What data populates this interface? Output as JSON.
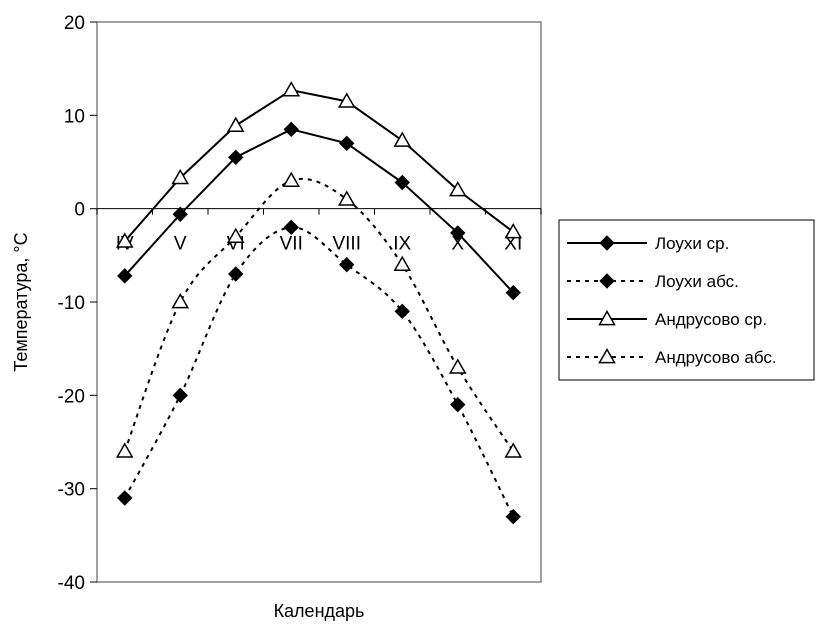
{
  "chart_data": {
    "type": "line",
    "title": "",
    "xlabel": "Календарь",
    "ylabel": "Температура, °C",
    "ylim": [
      -40,
      20
    ],
    "yticks": [
      -40,
      -30,
      -20,
      -10,
      0,
      10,
      20
    ],
    "yticks_labels": [
      "-40",
      "-30",
      "-20",
      "-10",
      "0",
      "10",
      "20"
    ],
    "categories": [
      "IV",
      "V",
      "VI",
      "VII",
      "VIII",
      "IX",
      "X",
      "XI"
    ],
    "grid": false,
    "legend_position": "right",
    "series": [
      {
        "name": "Лоухи ср.",
        "marker": "diamond",
        "line": "solid",
        "color": "#000000",
        "values": [
          -7.2,
          -0.6,
          5.5,
          8.5,
          7,
          2.8,
          -2.6,
          -9
        ]
      },
      {
        "name": "Лоухи абс.",
        "marker": "diamond",
        "line": "dashed",
        "color": "#000000",
        "values": [
          -31,
          -20,
          -7,
          -2,
          -6,
          -11,
          -21,
          -33
        ]
      },
      {
        "name": "Андрусово ср.",
        "marker": "triangle",
        "line": "solid",
        "color": "#000000",
        "values": [
          -3.5,
          3.3,
          8.9,
          12.7,
          11.5,
          7.3,
          2,
          -2.5
        ]
      },
      {
        "name": "Андрусово абс.",
        "marker": "triangle",
        "line": "dashed",
        "color": "#000000",
        "values": [
          -26,
          -10,
          -3,
          3,
          1,
          -6,
          -17,
          -26
        ]
      }
    ]
  }
}
